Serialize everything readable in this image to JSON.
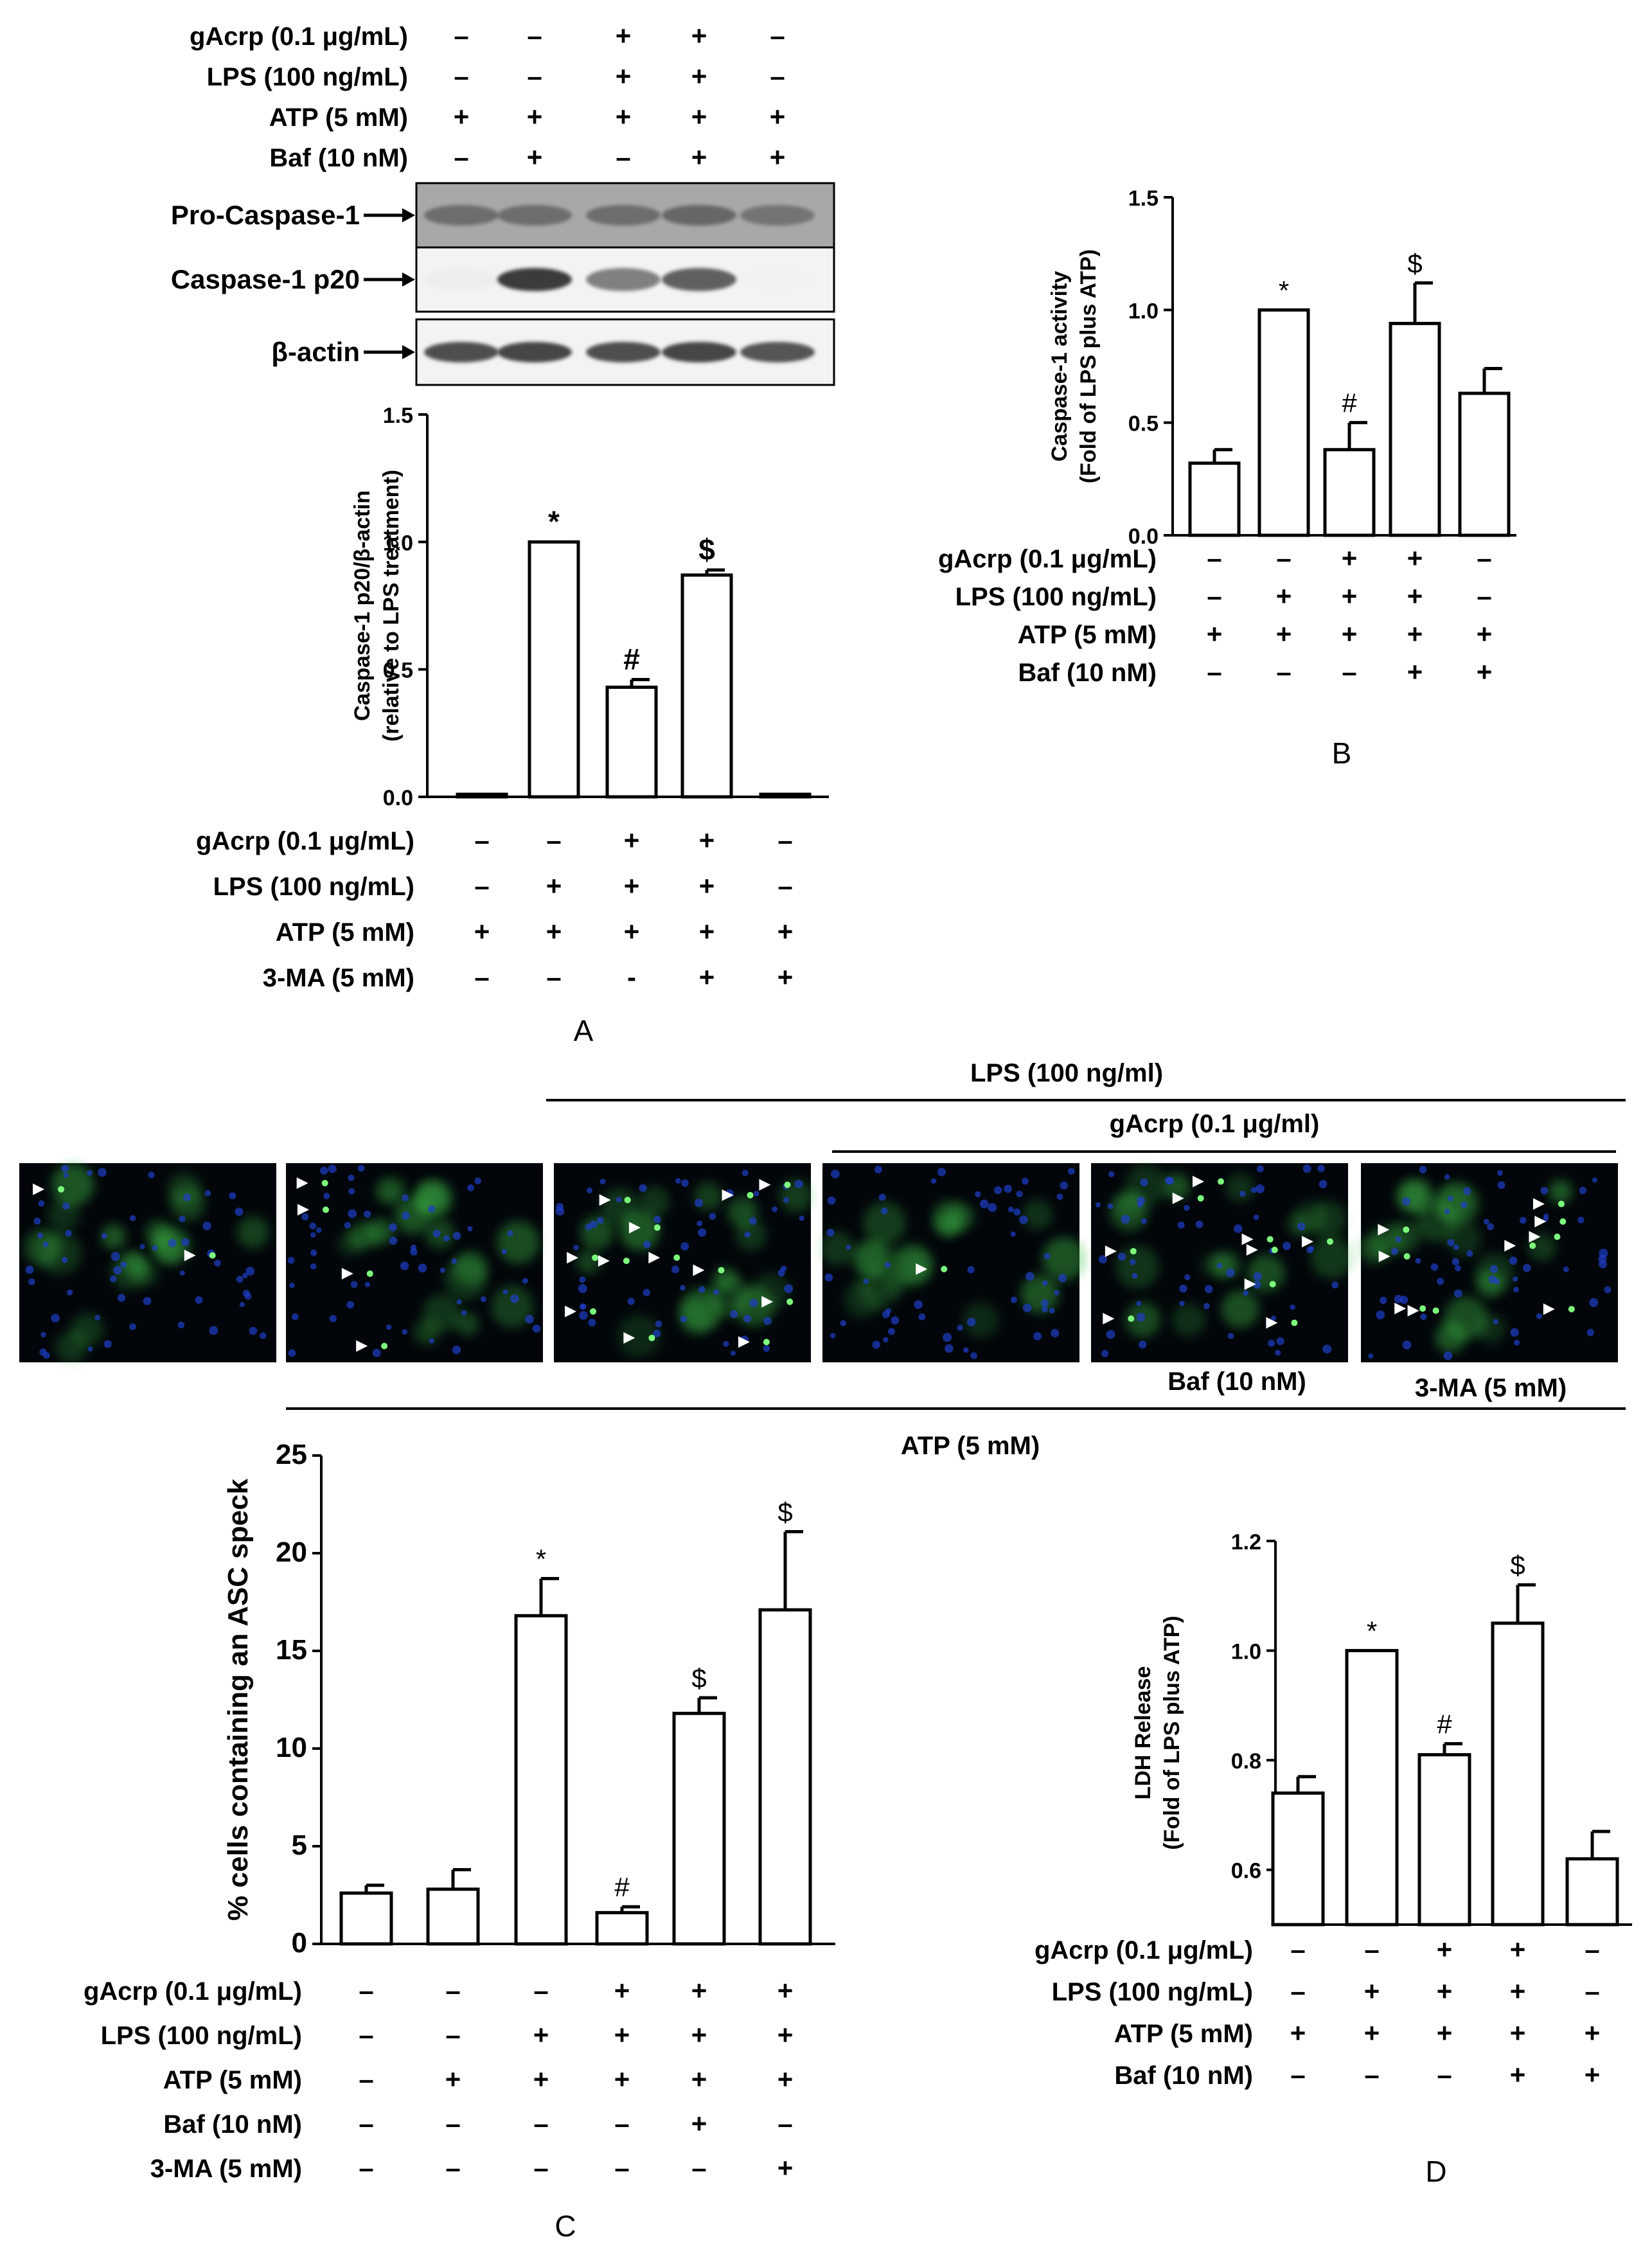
{
  "panel_labels": {
    "a": "A",
    "b": "B",
    "c": "C",
    "d": "D"
  },
  "blot": {
    "conditions": [
      {
        "label": "gAcrp (0.1 μg/mL)",
        "signs": [
          "–",
          "–",
          "+",
          "+",
          "–"
        ]
      },
      {
        "label": "LPS (100 ng/mL)",
        "signs": [
          "–",
          "–",
          "+",
          "+",
          "–"
        ]
      },
      {
        "label": "ATP (5 mM)",
        "signs": [
          "+",
          "+",
          "+",
          "+",
          "+"
        ]
      },
      {
        "label": "Baf (10 nM)",
        "signs": [
          "–",
          "+",
          "–",
          "+",
          "+"
        ]
      }
    ],
    "bands": [
      {
        "label": "Pro-Caspase-1",
        "intensity": [
          0.75,
          0.75,
          0.75,
          0.78,
          0.72
        ]
      },
      {
        "label": "Caspase-1 p20",
        "intensity": [
          0.15,
          0.95,
          0.75,
          0.85,
          0.05
        ]
      },
      {
        "label": "β-actin",
        "intensity": [
          0.9,
          0.92,
          0.9,
          0.92,
          0.88
        ]
      }
    ]
  },
  "micrographs": {
    "lps_label": "LPS (100 ng/ml)",
    "gacrp_label": "gAcrp (0.1 μg/ml)",
    "baf_label": "Baf (10 nM)",
    "ma_label": "3-MA (5 mM)",
    "atp_label": "ATP (5 mM)",
    "colors": {
      "background": "#02060a",
      "nuclei": "#1e3fc8",
      "cells": "#3fbf4a",
      "arrow": "#ffffff"
    },
    "specks_marked": [
      2,
      4,
      12,
      1,
      9,
      9
    ]
  },
  "chart_data": [
    {
      "panel": "A",
      "type": "bar",
      "ylabel_line1": "Caspase-1 p20/β-actin",
      "ylabel_line2": "(relative to LPS treatment)",
      "ylim": [
        0,
        1.5
      ],
      "yticks": [
        "0.0",
        "0.5",
        "1.0",
        "1.5"
      ],
      "values": [
        0.01,
        1.0,
        0.43,
        0.87,
        0.01
      ],
      "errors": [
        0.0,
        0.0,
        0.03,
        0.02,
        0.0
      ],
      "annotations": [
        "",
        "*",
        "#",
        "$",
        ""
      ],
      "conditions": [
        {
          "label": "gAcrp (0.1 μg/mL)",
          "signs": [
            "–",
            "–",
            "+",
            "+",
            "–"
          ]
        },
        {
          "label": "LPS (100 ng/mL)",
          "signs": [
            "–",
            "+",
            "+",
            "+",
            "–"
          ]
        },
        {
          "label": "ATP (5 mM)",
          "signs": [
            "+",
            "+",
            "+",
            "+",
            "+"
          ]
        },
        {
          "label": "3-MA (5 mM)",
          "signs": [
            "–",
            "–",
            "-",
            "+",
            "+"
          ]
        }
      ]
    },
    {
      "panel": "B",
      "type": "bar",
      "ylabel_line1": "Caspase-1 activity",
      "ylabel_line2": "(Fold of LPS plus ATP)",
      "ylim": [
        0,
        1.5
      ],
      "yticks": [
        "0.0",
        "0.5",
        "1.0",
        "1.5"
      ],
      "values": [
        0.32,
        1.0,
        0.38,
        0.94,
        0.63
      ],
      "errors": [
        0.06,
        0.0,
        0.12,
        0.18,
        0.11
      ],
      "annotations": [
        "",
        "*",
        "#",
        "$",
        ""
      ],
      "conditions": [
        {
          "label": "gAcrp (0.1 μg/mL)",
          "signs": [
            "–",
            "–",
            "+",
            "+",
            "–"
          ]
        },
        {
          "label": "LPS (100 ng/mL)",
          "signs": [
            "–",
            "+",
            "+",
            "+",
            "–"
          ]
        },
        {
          "label": "ATP (5 mM)",
          "signs": [
            "+",
            "+",
            "+",
            "+",
            "+"
          ]
        },
        {
          "label": "Baf (10 nM)",
          "signs": [
            "–",
            "–",
            "–",
            "+",
            "+"
          ]
        }
      ]
    },
    {
      "panel": "C",
      "type": "bar",
      "ylabel_line1": "% cells containing an ASC speck",
      "ylabel_line2": "",
      "ylim": [
        0,
        25
      ],
      "yticks": [
        "0",
        "5",
        "10",
        "15",
        "20",
        "25"
      ],
      "values": [
        2.6,
        2.8,
        16.8,
        1.6,
        11.8,
        17.1
      ],
      "errors": [
        0.4,
        1.0,
        1.9,
        0.3,
        0.8,
        4.0
      ],
      "annotations": [
        "",
        "",
        "*",
        "#",
        "$",
        "$"
      ],
      "conditions": [
        {
          "label": "gAcrp (0.1 μg/mL)",
          "signs": [
            "–",
            "–",
            "–",
            "+",
            "+",
            "+"
          ]
        },
        {
          "label": "LPS (100 ng/mL)",
          "signs": [
            "–",
            "–",
            "+",
            "+",
            "+",
            "+"
          ]
        },
        {
          "label": "ATP (5 mM)",
          "signs": [
            "–",
            "+",
            "+",
            "+",
            "+",
            "+"
          ]
        },
        {
          "label": "Baf (10 nM)",
          "signs": [
            "–",
            "–",
            "–",
            "–",
            "+",
            "–"
          ]
        },
        {
          "label": "3-MA (5 mM)",
          "signs": [
            "–",
            "–",
            "–",
            "–",
            "–",
            "+"
          ]
        }
      ]
    },
    {
      "panel": "D",
      "type": "bar",
      "ylabel_line1": "LDH Release",
      "ylabel_line2": "(Fold of LPS plus ATP)",
      "ylim": [
        0.5,
        1.2
      ],
      "yticks": [
        "0.6",
        "0.8",
        "1.0",
        "1.2"
      ],
      "values": [
        0.74,
        1.0,
        0.81,
        1.05,
        0.62
      ],
      "errors": [
        0.03,
        0.0,
        0.02,
        0.07,
        0.05
      ],
      "annotations": [
        "",
        "*",
        "#",
        "$",
        ""
      ],
      "conditions": [
        {
          "label": "gAcrp (0.1 μg/mL)",
          "signs": [
            "–",
            "–",
            "+",
            "+",
            "–"
          ]
        },
        {
          "label": "LPS (100 ng/mL)",
          "signs": [
            "–",
            "+",
            "+",
            "+",
            "–"
          ]
        },
        {
          "label": "ATP (5 mM)",
          "signs": [
            "+",
            "+",
            "+",
            "+",
            "+"
          ]
        },
        {
          "label": "Baf (10 nM)",
          "signs": [
            "–",
            "–",
            "–",
            "+",
            "+"
          ]
        }
      ]
    }
  ]
}
